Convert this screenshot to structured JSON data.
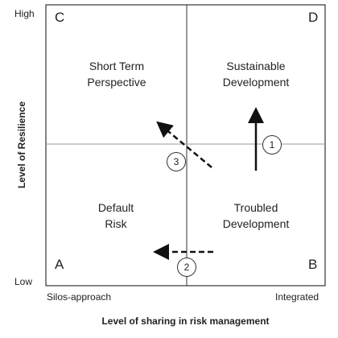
{
  "y_axis": {
    "high_label": "High",
    "low_label": "Low",
    "title": "Level of Resilience"
  },
  "x_axis": {
    "left_label": "Silos-approach",
    "right_label": "Integrated",
    "title": "Level of sharing in risk management"
  },
  "quadrants": {
    "top_left": {
      "letter": "C",
      "line1": "Short Term",
      "line2": "Perspective"
    },
    "top_right": {
      "letter": "D",
      "line1": "Sustainable",
      "line2": "Development"
    },
    "bottom_left": {
      "letter": "A",
      "line1": "Default",
      "line2": "Risk"
    },
    "bottom_right": {
      "letter": "B",
      "line1": "Troubled",
      "line2": "Development"
    }
  },
  "markers": {
    "m1": "1",
    "m2": "2",
    "m3": "3"
  },
  "arrows": [
    {
      "id": "solid-up",
      "style": "solid",
      "direction": "up",
      "marker": "1"
    },
    {
      "id": "dashed-left",
      "style": "dashed",
      "direction": "left",
      "marker": "2"
    },
    {
      "id": "dashed-diagonal",
      "style": "dashed",
      "direction": "up-left",
      "marker": "3"
    }
  ]
}
